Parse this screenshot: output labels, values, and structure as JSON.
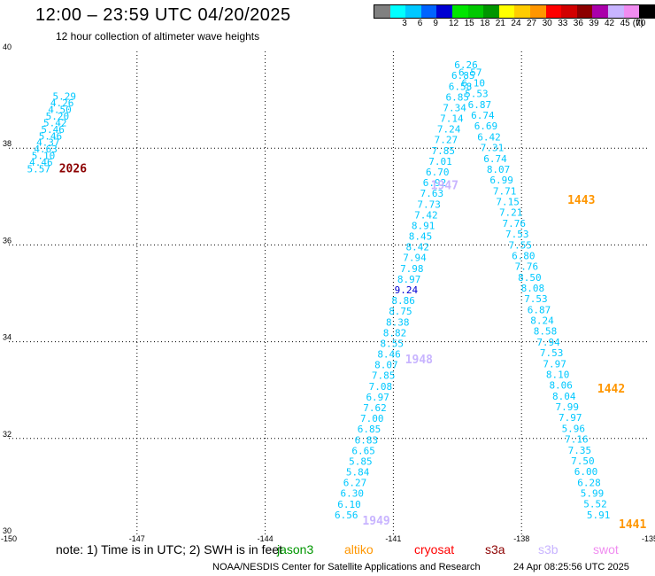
{
  "header": {
    "title": "12:00 – 23:59 UTC 04/20/2025",
    "subtitle": "12 hour collection of altimeter wave heights"
  },
  "colorbar": {
    "unit": "(ft)",
    "bins": [
      {
        "label": "",
        "color": "#808080"
      },
      {
        "label": "3",
        "color": "#00ffff"
      },
      {
        "label": "6",
        "color": "#00c8ff"
      },
      {
        "label": "9",
        "color": "#0064ff"
      },
      {
        "label": "12",
        "color": "#0000d2"
      },
      {
        "label": "15",
        "color": "#00e600"
      },
      {
        "label": "18",
        "color": "#00c800"
      },
      {
        "label": "21",
        "color": "#009600"
      },
      {
        "label": "24",
        "color": "#ffff00"
      },
      {
        "label": "27",
        "color": "#ffcc00"
      },
      {
        "label": "30",
        "color": "#ff9600"
      },
      {
        "label": "33",
        "color": "#ff0000"
      },
      {
        "label": "36",
        "color": "#d20000"
      },
      {
        "label": "39",
        "color": "#8c0000"
      },
      {
        "label": "42",
        "color": "#aa00aa"
      },
      {
        "label": "45",
        "color": "#c8b4ff"
      },
      {
        "label": "70",
        "color": "#f08cf0"
      },
      {
        "label": "",
        "color": "#000000"
      }
    ]
  },
  "map": {
    "lon_range": [
      -150,
      -135
    ],
    "lat_range": [
      30,
      40
    ],
    "lon_ticks": [
      "-150",
      "-147",
      "-144",
      "-141",
      "-138",
      "-135"
    ],
    "lat_ticks": [
      "30",
      "32",
      "34",
      "36",
      "38",
      "40"
    ],
    "grid_lons": [
      -147,
      -144,
      -141,
      -138
    ],
    "grid_lats": [
      32,
      34,
      36,
      38
    ],
    "swh_colors": {
      "low": "#00c8ff",
      "mid": "#0000d2"
    },
    "tracks": [
      {
        "name": "track-1",
        "values": [
          "5.29",
          "4.26",
          "4.50",
          "5.20",
          "5.42",
          "5.46",
          "5.46",
          "4.37",
          "4.63",
          "5.10",
          "4.46",
          "5.57"
        ],
        "lon_start": -148.7,
        "lat_start": 39.0,
        "lon_end": -149.3,
        "lat_end": 37.5
      },
      {
        "name": "track-2",
        "values": [
          "6.26",
          "6.57",
          "6.85",
          "6.10",
          "6.58",
          "5.53",
          "6.85",
          "6.87",
          "7.34",
          "6.74",
          "7.14",
          "6.69",
          "7.24",
          "6.42",
          "7.27",
          "7.31",
          "7.85",
          "6.74",
          "7.01",
          "8.07",
          "6.70",
          "6.99",
          "6.92",
          "7.71",
          "7.63",
          "7.15",
          "7.73",
          "7.21",
          "7.42",
          "7.76",
          "8.91",
          "7.53",
          "8.45",
          "7.55",
          "8.42",
          "6.80",
          "7.94",
          "7.76",
          "7.98",
          "8.50",
          "8.97",
          "8.08",
          "9.24",
          "7.53",
          "8.86",
          "6.87",
          "8.75",
          "8.24",
          "8.38",
          "8.58",
          "8.82",
          "7.94",
          "8.55",
          "7.53",
          "8.46",
          "7.97",
          "8.07",
          "8.10",
          "7.85",
          "8.06",
          "7.08",
          "8.04",
          "6.97",
          "7.99",
          "7.62",
          "7.97",
          "7.00",
          "5.96",
          "6.85",
          "7.16",
          "6.83",
          "7.35",
          "6.65",
          "7.50",
          "5.85",
          "6.00",
          "5.84",
          "6.28",
          "6.27",
          "5.99",
          "6.30",
          "5.52",
          "6.10",
          "5.91",
          "6.56"
        ]
      }
    ],
    "times": [
      {
        "label": "2026",
        "color": "#8c0000",
        "lon": -148.5,
        "lat": 37.5
      },
      {
        "label": "1947",
        "color": "#c8b4ff",
        "lon": -139.8,
        "lat": 37.15
      },
      {
        "label": "1443",
        "color": "#ff9600",
        "lon": -136.6,
        "lat": 36.85
      },
      {
        "label": "1948",
        "color": "#c8b4ff",
        "lon": -140.4,
        "lat": 33.55
      },
      {
        "label": "1442",
        "color": "#ff9600",
        "lon": -135.9,
        "lat": 32.95
      },
      {
        "label": "1949",
        "color": "#c8b4ff",
        "lon": -141.4,
        "lat": 30.22
      },
      {
        "label": "1441",
        "color": "#ff9600",
        "lon": -135.4,
        "lat": 30.15
      }
    ]
  },
  "footer": {
    "note": "note:  1) Time is in UTC; 2) SWH is in feet",
    "satellites": [
      {
        "label": "jason3",
        "color": "#009600"
      },
      {
        "label": "altiko",
        "color": "#ff9600"
      },
      {
        "label": "cryosat",
        "color": "#ff0000"
      },
      {
        "label": "s3a",
        "color": "#8c0000"
      },
      {
        "label": "s3b",
        "color": "#c8b4ff"
      },
      {
        "label": "swot",
        "color": "#f08cf0"
      }
    ],
    "credit": "NOAA/NESDIS Center for Satellite Applications and Research",
    "timestamp": "24 Apr 08:25:56 UTC 2025"
  }
}
